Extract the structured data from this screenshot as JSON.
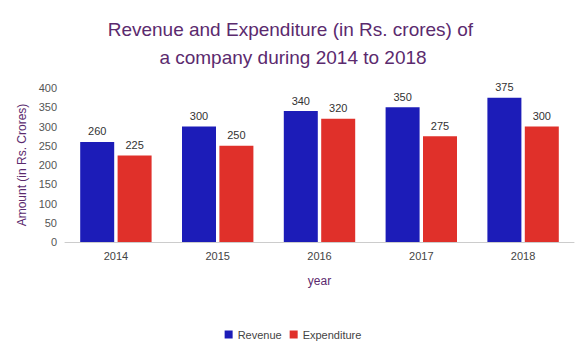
{
  "chart_data": {
    "type": "bar",
    "title": "Revenue and Expenditure (in Rs. crores) of a company during 2014 to 2018",
    "x_label": "year",
    "y_label": "Amount (in Rs. Crores)",
    "categories": [
      "2014",
      "2015",
      "2016",
      "2017",
      "2018"
    ],
    "series": [
      {
        "name": "Revenue",
        "color": "#1c1cb8",
        "values": [
          260,
          300,
          340,
          350,
          375
        ]
      },
      {
        "name": "Expenditure",
        "color": "#e0302a",
        "values": [
          225,
          250,
          320,
          275,
          300
        ]
      }
    ],
    "ylim": [
      0,
      400
    ],
    "yticks": [
      0,
      50,
      100,
      150,
      200,
      250,
      300,
      350,
      400
    ],
    "grid": false,
    "legend": "bottom",
    "data_labels": true
  }
}
